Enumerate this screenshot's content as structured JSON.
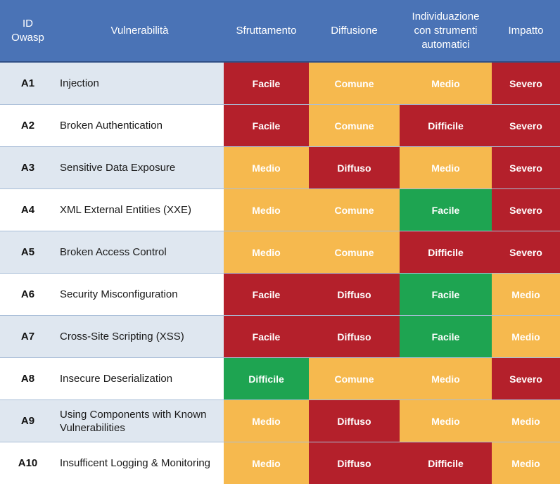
{
  "headers": {
    "id": "ID\nOwasp",
    "id_line1": "ID",
    "id_line2": "Owasp",
    "vulnerability": "Vulnerabilità",
    "exploitation": "Sfruttamento",
    "diffusion": "Diffusione",
    "detection_line1": "Individuazione",
    "detection_line2": "con strumenti",
    "detection_line3": "automatici",
    "impact": "Impatto"
  },
  "colors": {
    "header_bg": "#4a73b6",
    "red": "#b4202b",
    "orange": "#f6b94e",
    "green": "#1ea451",
    "row_alt": "#dfe7f0"
  },
  "rows": [
    {
      "id": "A1",
      "name": "Injection",
      "exploitation": "Facile",
      "diffusion": "Comune",
      "detection": "Medio",
      "impact": "Severo"
    },
    {
      "id": "A2",
      "name": "Broken Authentication",
      "exploitation": "Facile",
      "diffusion": "Comune",
      "detection": "Difficile",
      "impact": "Severo"
    },
    {
      "id": "A3",
      "name": "Sensitive Data Exposure",
      "exploitation": "Medio",
      "diffusion": "Diffuso",
      "detection": "Medio",
      "impact": "Severo"
    },
    {
      "id": "A4",
      "name": "XML External Entities (XXE)",
      "exploitation": "Medio",
      "diffusion": "Comune",
      "detection": "Facile",
      "impact": "Severo"
    },
    {
      "id": "A5",
      "name": "Broken Access Control",
      "exploitation": "Medio",
      "diffusion": "Comune",
      "detection": "Difficile",
      "impact": "Severo"
    },
    {
      "id": "A6",
      "name": "Security Misconfiguration",
      "exploitation": "Facile",
      "diffusion": "Diffuso",
      "detection": "Facile",
      "impact": "Medio"
    },
    {
      "id": "A7",
      "name": "Cross-Site Scripting (XSS)",
      "exploitation": "Facile",
      "diffusion": "Diffuso",
      "detection": "Facile",
      "impact": "Medio"
    },
    {
      "id": "A8",
      "name": "Insecure Deserialization",
      "exploitation": "Difficile",
      "diffusion": "Comune",
      "detection": "Medio",
      "impact": "Severo"
    },
    {
      "id": "A9",
      "name": "Using Components with Known Vulnerabilities",
      "exploitation": "Medio",
      "diffusion": "Diffuso",
      "detection": "Medio",
      "impact": "Medio"
    },
    {
      "id": "A10",
      "name": "Insufficent Logging & Monitoring",
      "exploitation": "Medio",
      "diffusion": "Diffuso",
      "detection": "Difficile",
      "impact": "Medio"
    }
  ]
}
